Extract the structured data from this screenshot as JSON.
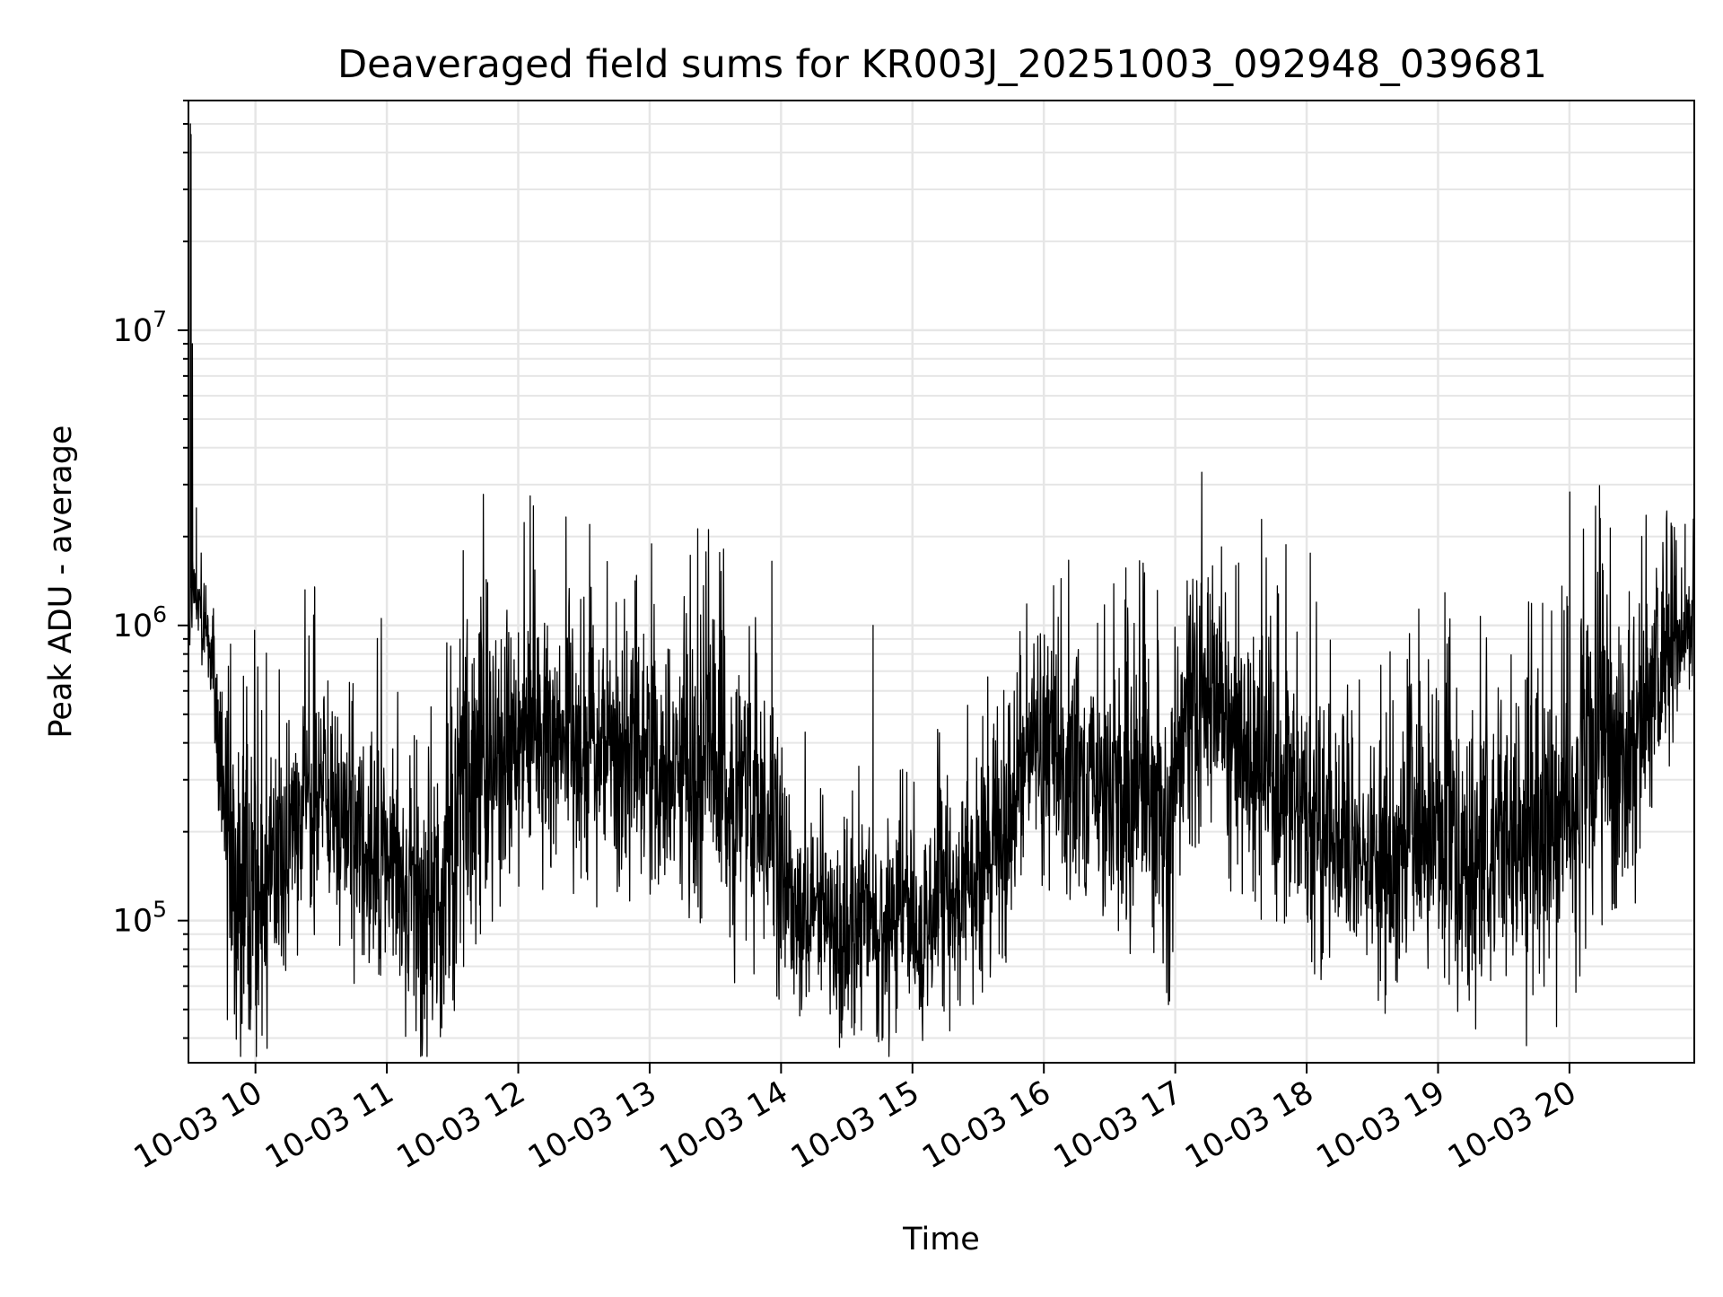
{
  "chart_data": {
    "type": "line",
    "title": "Deaveraged field sums for KR003J_20251003_092948_039681",
    "xlabel": "Time",
    "ylabel": "Peak ADU - average",
    "yscale": "log",
    "ylim": [
      33000,
      60000000
    ],
    "xlim_hours": [
      9.49,
      20.95
    ],
    "grid": true,
    "x_ticks": [
      {
        "hour": 10,
        "label": "10-03 10"
      },
      {
        "hour": 11,
        "label": "10-03 11"
      },
      {
        "hour": 12,
        "label": "10-03 12"
      },
      {
        "hour": 13,
        "label": "10-03 13"
      },
      {
        "hour": 14,
        "label": "10-03 14"
      },
      {
        "hour": 15,
        "label": "10-03 15"
      },
      {
        "hour": 16,
        "label": "10-03 16"
      },
      {
        "hour": 17,
        "label": "10-03 17"
      },
      {
        "hour": 18,
        "label": "10-03 18"
      },
      {
        "hour": 19,
        "label": "10-03 19"
      },
      {
        "hour": 20,
        "label": "10-03 20"
      }
    ],
    "y_ticks": [
      {
        "value": 100000,
        "base": "10",
        "exp": "5"
      },
      {
        "value": 1000000,
        "base": "10",
        "exp": "6"
      },
      {
        "value": 10000000,
        "base": "10",
        "exp": "7"
      }
    ],
    "series": [
      {
        "name": "field sums",
        "color": "#000000",
        "hours": [
          9.5,
          9.52,
          9.55,
          9.6,
          9.65,
          9.7,
          9.75,
          9.8,
          9.85,
          9.9,
          10.0,
          10.2,
          10.4,
          10.5,
          10.6,
          10.8,
          11.0,
          11.2,
          11.4,
          11.5,
          11.8,
          12.0,
          12.2,
          12.5,
          12.8,
          13.0,
          13.2,
          13.5,
          13.8,
          14.0,
          14.2,
          14.5,
          14.8,
          15.0,
          15.2,
          15.5,
          15.7,
          15.8,
          16.0,
          16.2,
          16.5,
          16.8,
          16.95,
          17.0,
          17.2,
          17.5,
          17.8,
          18.0,
          18.2,
          18.4,
          18.5,
          18.8,
          19.0,
          19.2,
          19.5,
          19.8,
          20.0,
          20.2,
          20.5,
          20.7,
          20.9
        ],
        "median": [
          1200000,
          1300000,
          1200000,
          1100000,
          900000,
          500000,
          300000,
          180000,
          130000,
          120000,
          130000,
          170000,
          260000,
          280000,
          250000,
          200000,
          160000,
          130000,
          110000,
          200000,
          350000,
          400000,
          450000,
          420000,
          380000,
          360000,
          380000,
          320000,
          250000,
          150000,
          110000,
          90000,
          100000,
          90000,
          110000,
          130000,
          200000,
          350000,
          380000,
          330000,
          280000,
          220000,
          150000,
          350000,
          600000,
          450000,
          300000,
          250000,
          200000,
          160000,
          150000,
          180000,
          200000,
          170000,
          190000,
          180000,
          300000,
          350000,
          400000,
          700000,
          1000000
        ],
        "spread_factor": [
          1.3,
          1.3,
          1.3,
          1.3,
          1.4,
          1.8,
          2.0,
          2.6,
          2.4,
          2.2,
          2.2,
          2.0,
          1.9,
          1.9,
          1.9,
          2.0,
          2.1,
          2.1,
          2.2,
          2.6,
          2.4,
          2.2,
          2.0,
          2.0,
          2.0,
          2.1,
          2.0,
          2.1,
          2.2,
          1.9,
          1.8,
          1.7,
          1.7,
          1.8,
          1.8,
          1.8,
          1.9,
          1.9,
          1.9,
          1.9,
          2.0,
          2.2,
          2.1,
          2.3,
          2.0,
          2.1,
          2.1,
          2.2,
          1.8,
          1.8,
          1.8,
          2.1,
          2.1,
          2.1,
          2.3,
          2.4,
          2.6,
          2.4,
          2.0,
          1.7,
          1.4
        ],
        "peaks": [
          [
            9.505,
            50000000
          ],
          [
            9.51,
            46000000
          ],
          [
            9.52,
            9000000
          ],
          [
            9.55,
            2500000
          ],
          [
            13.93,
            1650000
          ],
          [
            14.7,
            1000000
          ],
          [
            10.45,
            1350000
          ],
          [
            17.25,
            1450000
          ],
          [
            20.95,
            2300000
          ],
          [
            20.88,
            2200000
          ]
        ]
      }
    ]
  }
}
